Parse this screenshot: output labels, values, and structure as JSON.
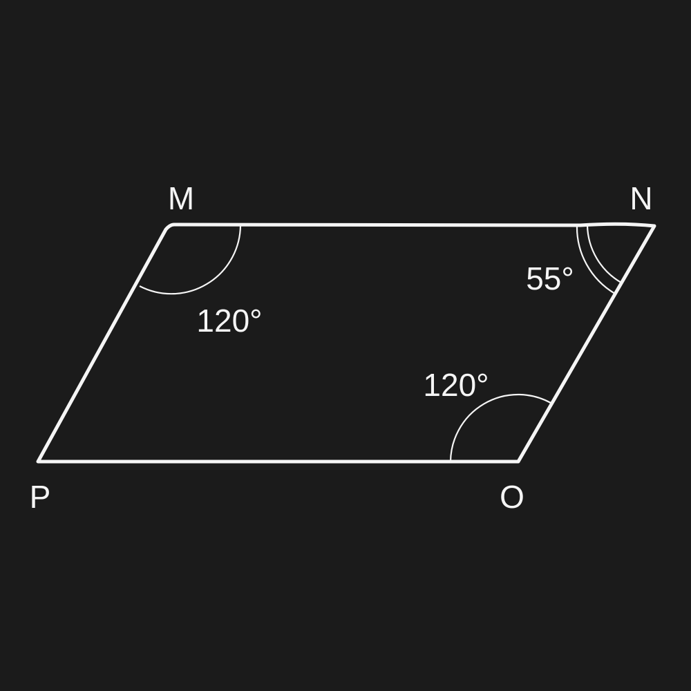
{
  "colors": {
    "background": "#1b1b1b",
    "ink": "#f5f5f5"
  },
  "vertices": {
    "M": "M",
    "N": "N",
    "O": "O",
    "P": "P"
  },
  "angles": {
    "M": "120°",
    "N": "55°",
    "O": "120°"
  }
}
